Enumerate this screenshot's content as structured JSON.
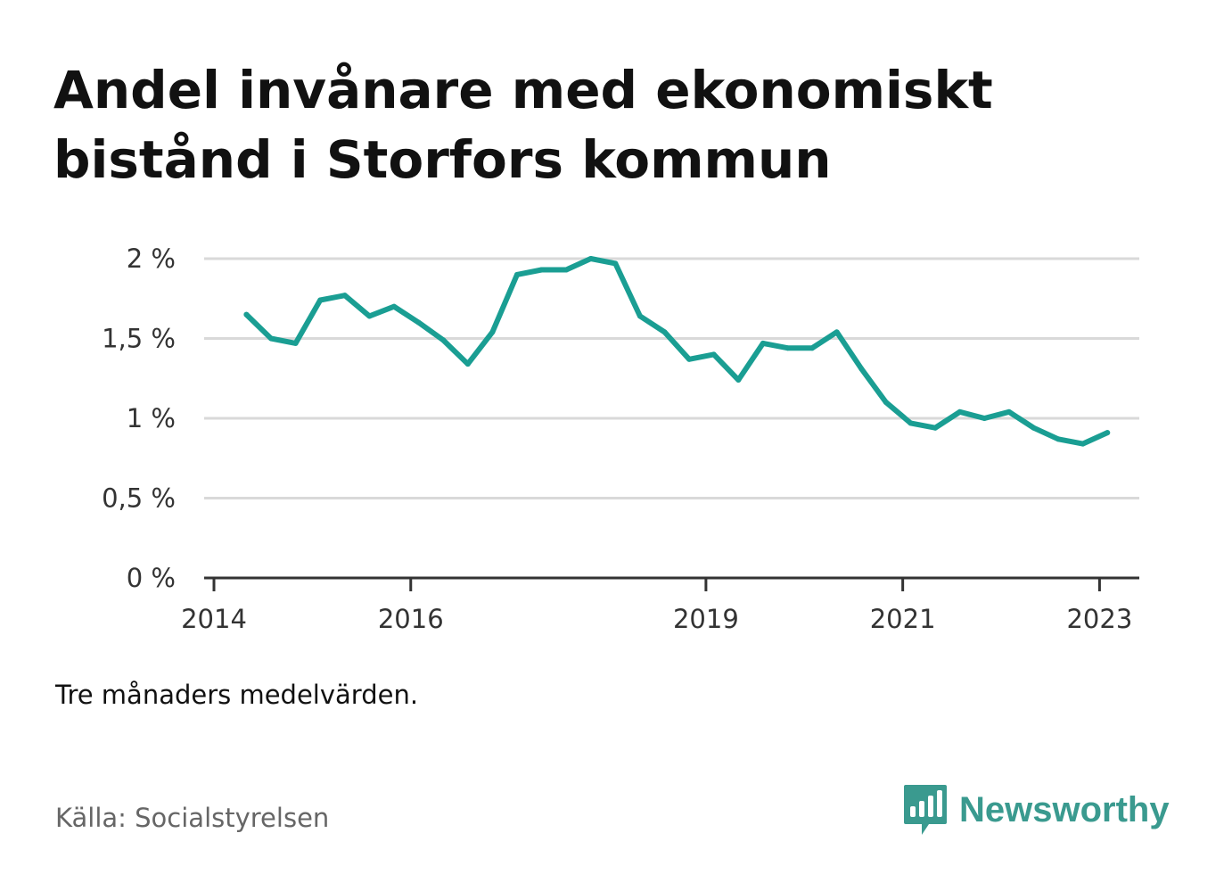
{
  "title_lines": [
    "Andel invånare med ekonomiskt",
    "bistånd i Storfors kommun"
  ],
  "note": "Tre månaders medelvärden.",
  "source": "Källa: Socialstyrelsen",
  "brand": {
    "name": "Newsworthy",
    "color": "#3a9a8f",
    "icon": "bar-chart-speech-bubble-icon"
  },
  "colors": {
    "line": "#1a9e93",
    "grid": "#d9d9d9",
    "axis": "#333333"
  },
  "chart_data": {
    "type": "line",
    "title": "Andel invånare med ekonomiskt bistånd i Storfors kommun",
    "ylabel": "",
    "xlabel": "",
    "ylim": [
      0,
      2
    ],
    "xlim": [
      2014.0,
      2023.25
    ],
    "y_ticks": [
      {
        "value": 0,
        "label": "0 %"
      },
      {
        "value": 0.5,
        "label": "0,5 %"
      },
      {
        "value": 1,
        "label": "1 %"
      },
      {
        "value": 1.5,
        "label": "1,5 %"
      },
      {
        "value": 2,
        "label": "2 %"
      }
    ],
    "x_ticks": [
      {
        "value": 2014,
        "label": "2014"
      },
      {
        "value": 2016,
        "label": "2016"
      },
      {
        "value": 2019,
        "label": "2019"
      },
      {
        "value": 2021,
        "label": "2021"
      },
      {
        "value": 2023,
        "label": "2023"
      }
    ],
    "grid": true,
    "series": [
      {
        "x": [
          2014.33,
          2014.58,
          2014.83,
          2015.08,
          2015.33,
          2015.58,
          2015.83,
          2016.08,
          2016.33,
          2016.58,
          2016.83,
          2017.08,
          2017.33,
          2017.58,
          2017.83,
          2018.08,
          2018.33,
          2018.58,
          2018.83,
          2019.08,
          2019.33,
          2019.58,
          2019.83,
          2020.08,
          2020.33,
          2020.58,
          2020.83,
          2021.08,
          2021.33,
          2021.58,
          2021.83,
          2022.08,
          2022.33,
          2022.58,
          2022.83,
          2023.08
        ],
        "y": [
          1.65,
          1.5,
          1.47,
          1.74,
          1.77,
          1.64,
          1.7,
          1.6,
          1.49,
          1.34,
          1.54,
          1.9,
          1.93,
          1.93,
          2.0,
          1.97,
          1.64,
          1.54,
          1.37,
          1.4,
          1.24,
          1.47,
          1.44,
          1.44,
          1.54,
          1.31,
          1.1,
          0.97,
          0.94,
          1.04,
          1.0,
          1.04,
          0.94,
          0.87,
          0.84,
          0.91
        ]
      }
    ]
  }
}
